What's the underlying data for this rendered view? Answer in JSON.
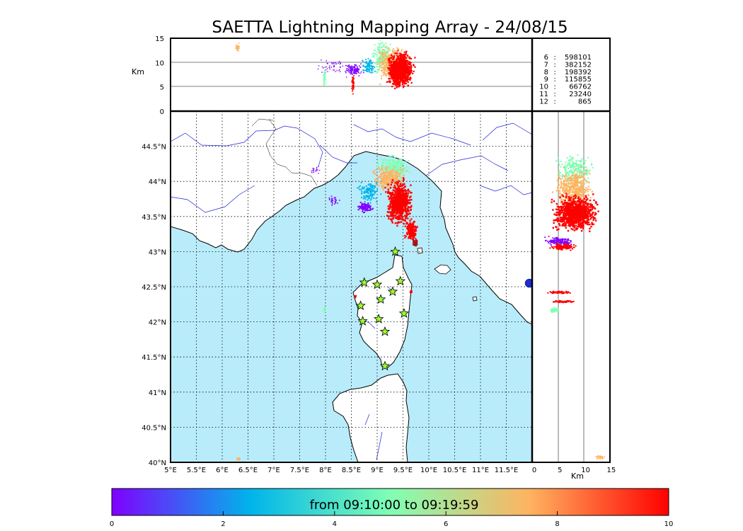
{
  "title": "SAETTA Lightning Mapping Array - 24/08/15",
  "altitude_axis": {
    "unit_label": "Km",
    "ticks": [
      "0",
      "5",
      "10",
      "15"
    ],
    "ticks_top_panel": [
      "15",
      "10",
      "5",
      "0"
    ]
  },
  "map": {
    "lon_ticks": [
      "5°E",
      "5.5°E",
      "6°E",
      "6.5°E",
      "7°E",
      "7.5°E",
      "8°E",
      "8.5°E",
      "9°E",
      "9.5°E",
      "10°E",
      "10.5°E",
      "11°E",
      "11.5°E"
    ],
    "lat_ticks": [
      "44.5°N",
      "44°N",
      "43.5°N",
      "43°N",
      "42.5°N",
      "42°N",
      "41.5°N",
      "41°N",
      "40.5°N",
      "40°N"
    ],
    "lon_range": [
      5,
      12
    ],
    "lat_range": [
      40,
      45
    ],
    "sea_color": "#b9ecfb",
    "land_color": "#ffffff",
    "river_color": "#2222dd",
    "station_icon": "star-icon",
    "station_color": "#9afc2c",
    "stations": [
      {
        "lon": 9.35,
        "lat": 43.0
      },
      {
        "lon": 8.75,
        "lat": 42.56
      },
      {
        "lon": 9.0,
        "lat": 42.53
      },
      {
        "lon": 9.45,
        "lat": 42.58
      },
      {
        "lon": 9.3,
        "lat": 42.43
      },
      {
        "lon": 9.07,
        "lat": 42.32
      },
      {
        "lon": 8.68,
        "lat": 42.23
      },
      {
        "lon": 9.52,
        "lat": 42.12
      },
      {
        "lon": 8.72,
        "lat": 42.01
      },
      {
        "lon": 9.03,
        "lat": 42.04
      },
      {
        "lon": 9.15,
        "lat": 41.86
      },
      {
        "lon": 9.15,
        "lat": 41.37
      }
    ]
  },
  "source_counts": [
    {
      "label": "6",
      "sep": ":",
      "count": "598101",
      "color": "#000000"
    },
    {
      "label": "7",
      "sep": ":",
      "count": "382152",
      "color": "#ff0000"
    },
    {
      "label": "8",
      "sep": ":",
      "count": "198392",
      "color": "#000000"
    },
    {
      "label": "9",
      "sep": ":",
      "count": "115855",
      "color": "#000000"
    },
    {
      "label": "10",
      "sep": ":",
      "count": "66762",
      "color": "#000000"
    },
    {
      "label": "11",
      "sep": ":",
      "count": "23240",
      "color": "#000000"
    },
    {
      "label": "12",
      "sep": ":",
      "count": "865",
      "color": "#000000"
    }
  ],
  "colorbar": {
    "label": "from 09:10:00 to 09:19:59",
    "ticks": [
      "0",
      "2",
      "4",
      "6",
      "8",
      "10"
    ],
    "range": [
      0,
      10
    ],
    "colormap": "rainbow",
    "colors": [
      "#8000ff",
      "#00b5eb",
      "#80ffb4",
      "#ffb360",
      "#ff0000"
    ]
  }
}
